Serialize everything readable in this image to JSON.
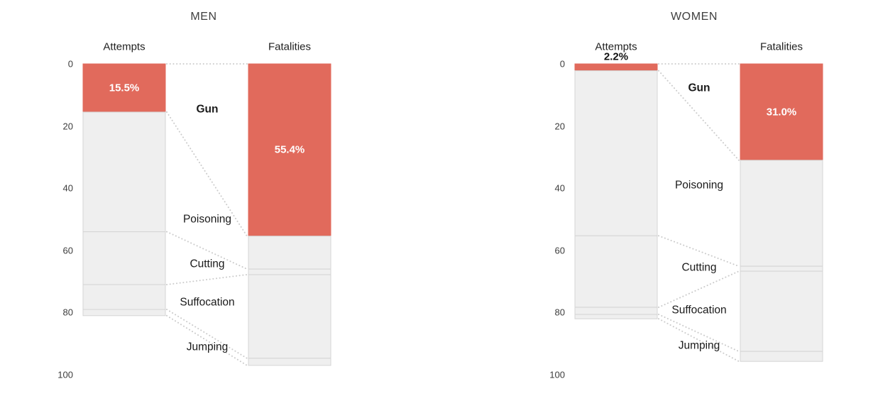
{
  "figure": {
    "background": "#ffffff"
  },
  "colors": {
    "accent": "#e16a5c",
    "segment_fill": "#efefef",
    "segment_border": "#d4d4d4",
    "connector_dots": "#cccccc",
    "title_text": "#3f3f3f",
    "header_text": "#1f1f1f",
    "tick_text": "#3c3c3c",
    "category_text": "#1a1a1a",
    "pct_inside_text": "#ffffff",
    "pct_outside_text": "#111111"
  },
  "chart_data": [
    {
      "type": "bar",
      "variant": "stacked-columns-with-slope-connectors",
      "title": "MEN",
      "stack_order": [
        "Gun",
        "Poisoning",
        "Cutting",
        "Suffocation",
        "Jumping"
      ],
      "highlighted_category": "Gun",
      "series": [
        {
          "name": "Attempts",
          "values": [
            15.5,
            38.5,
            17.0,
            8.0,
            2.0
          ]
        },
        {
          "name": "Fatalities",
          "values": [
            55.4,
            10.6,
            1.8,
            26.9,
            2.3
          ]
        }
      ],
      "data_labels": {
        "attempts": "15.5%",
        "fatalities": "55.4%"
      },
      "ylim": [
        0,
        100
      ],
      "yticks": [
        0,
        20,
        40,
        60,
        80,
        100
      ],
      "y_axis_inverted_downward": true,
      "grid": false,
      "legend": false
    },
    {
      "type": "bar",
      "variant": "stacked-columns-with-slope-connectors",
      "title": "WOMEN",
      "stack_order": [
        "Gun",
        "Poisoning",
        "Cutting",
        "Suffocation",
        "Jumping"
      ],
      "highlighted_category": "Gun",
      "series": [
        {
          "name": "Attempts",
          "values": [
            2.2,
            53.1,
            23.0,
            2.3,
            1.4
          ]
        },
        {
          "name": "Fatalities",
          "values": [
            31.0,
            34.1,
            1.6,
            25.8,
            3.2
          ]
        }
      ],
      "data_labels": {
        "attempts": "2.2%",
        "fatalities": "31.0%"
      },
      "ylim": [
        0,
        100
      ],
      "yticks": [
        0,
        20,
        40,
        60,
        80,
        100
      ],
      "y_axis_inverted_downward": true,
      "grid": false,
      "legend": false
    }
  ]
}
